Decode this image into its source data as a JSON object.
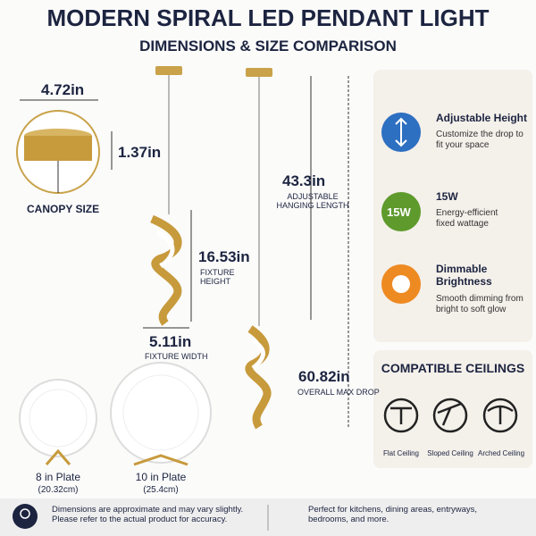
{
  "header": {
    "title": "MODERN SPIRAL LED PENDANT LIGHT",
    "subtitle": "DIMENSIONS & SIZE COMPARISON"
  },
  "canopy": {
    "width": "4.72in",
    "height": "1.37in",
    "label": "CANOPY SIZE"
  },
  "fixture": {
    "height": "16.53in",
    "height_label": "FIXTURE HEIGHT",
    "width": "5.11in",
    "width_label": "FIXTURE WIDTH"
  },
  "hanging": {
    "length": "43.3in",
    "label": "ADJUSTABLE HANGING LENGTH"
  },
  "overall": {
    "drop": "60.82in",
    "label": "OVERALL MAX DROP"
  },
  "features": [
    {
      "title": "Adjustable Height",
      "text": "Customize the drop to fit your space"
    },
    {
      "icon": "15W",
      "title": "15W",
      "text": "Energy-efficient fixed wattage"
    },
    {
      "title": "Dimmable Brightness",
      "text": "Smooth dimming from bright to soft glow"
    }
  ],
  "ceilings": {
    "title": "COMPATIBLE CEILINGS",
    "items": [
      "Flat Ceiling",
      "Sloped Ceiling",
      "Arched Ceiling"
    ]
  },
  "plates": [
    {
      "name": "8 in Plate",
      "metric": "(20.32cm)"
    },
    {
      "name": "10 in Plate",
      "metric": "(25.4cm)"
    }
  ],
  "footer": {
    "note": "Dimensions are approximate and may vary slightly. Please refer to the actual product for accuracy.",
    "usage": "Perfect for kitchens, dining areas, entryways, bedrooms, and more."
  }
}
